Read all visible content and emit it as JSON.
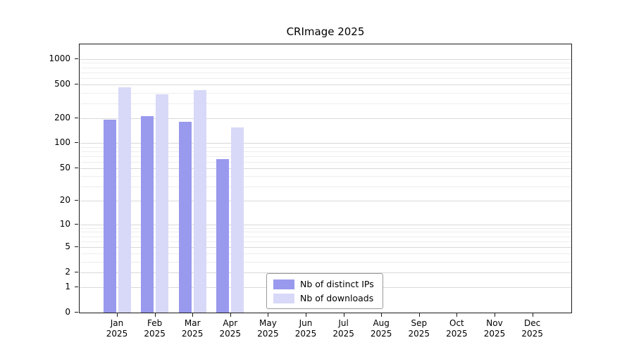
{
  "chart_data": {
    "type": "bar",
    "title": "CRImage 2025",
    "months": [
      "Jan",
      "Feb",
      "Mar",
      "Apr",
      "May",
      "Jun",
      "Jul",
      "Aug",
      "Sep",
      "Oct",
      "Nov",
      "Dec"
    ],
    "year": "2025",
    "xlabel": "",
    "ylabel": "",
    "y_scale": "log1p",
    "ylim": [
      0,
      1500
    ],
    "grid": true,
    "y_ticks": [
      0,
      1,
      2,
      5,
      10,
      20,
      50,
      100,
      200,
      500,
      1000
    ],
    "y_minor_ticks": [
      3,
      4,
      6,
      7,
      8,
      9,
      30,
      40,
      60,
      70,
      80,
      90,
      300,
      400,
      600,
      700,
      800,
      900
    ],
    "legend_position": "bottom-center",
    "series": [
      {
        "name": "Nb of distinct IPs",
        "color": "#9999ee",
        "values": [
          190,
          210,
          180,
          65,
          0,
          0,
          0,
          0,
          0,
          0,
          0,
          0
        ]
      },
      {
        "name": "Nb of downloads",
        "color": "#d8d8f8",
        "values": [
          460,
          380,
          430,
          155,
          0,
          0,
          0,
          0,
          0,
          0,
          0,
          0
        ]
      }
    ]
  }
}
